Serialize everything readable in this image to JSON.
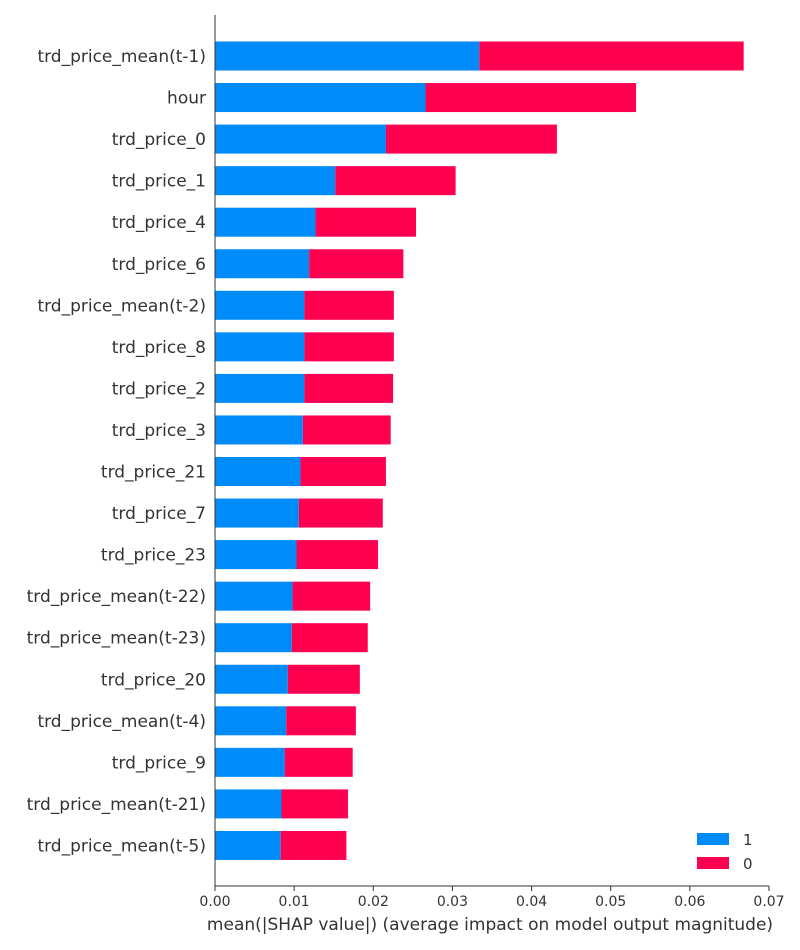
{
  "chart_data": {
    "type": "bar",
    "orientation": "horizontal",
    "stacked": true,
    "categories": [
      "trd_price_mean(t-1)",
      "hour",
      "trd_price_0",
      "trd_price_1",
      "trd_price_4",
      "trd_price_6",
      "trd_price_mean(t-2)",
      "trd_price_8",
      "trd_price_2",
      "trd_price_3",
      "trd_price_21",
      "trd_price_7",
      "trd_price_23",
      "trd_price_mean(t-22)",
      "trd_price_mean(t-23)",
      "trd_price_20",
      "trd_price_mean(t-4)",
      "trd_price_9",
      "trd_price_mean(t-21)",
      "trd_price_mean(t-5)"
    ],
    "series": [
      {
        "name": "1",
        "color": "#008bfb",
        "values": [
          0.0334,
          0.0266,
          0.0216,
          0.0152,
          0.0127,
          0.0119,
          0.0113,
          0.0113,
          0.0113,
          0.0111,
          0.0108,
          0.0106,
          0.0103,
          0.0098,
          0.0097,
          0.0092,
          0.009,
          0.0088,
          0.0084,
          0.0083
        ]
      },
      {
        "name": "0",
        "color": "#ff0051",
        "values": [
          0.0334,
          0.0266,
          0.0216,
          0.0152,
          0.0127,
          0.0119,
          0.0113,
          0.0113,
          0.0112,
          0.0111,
          0.0108,
          0.0106,
          0.0103,
          0.0098,
          0.0096,
          0.0091,
          0.0088,
          0.0086,
          0.0084,
          0.0083
        ]
      }
    ],
    "xlim": [
      0,
      0.07
    ],
    "xticks": [
      "0.00",
      "0.01",
      "0.02",
      "0.03",
      "0.04",
      "0.05",
      "0.06",
      "0.07"
    ],
    "xlabel": "mean(|SHAP value|) (average impact on model output magnitude)",
    "ylabel": "",
    "title": "",
    "grid": false,
    "legend": {
      "position": "bottom-right",
      "order": [
        "1",
        "0"
      ]
    }
  }
}
